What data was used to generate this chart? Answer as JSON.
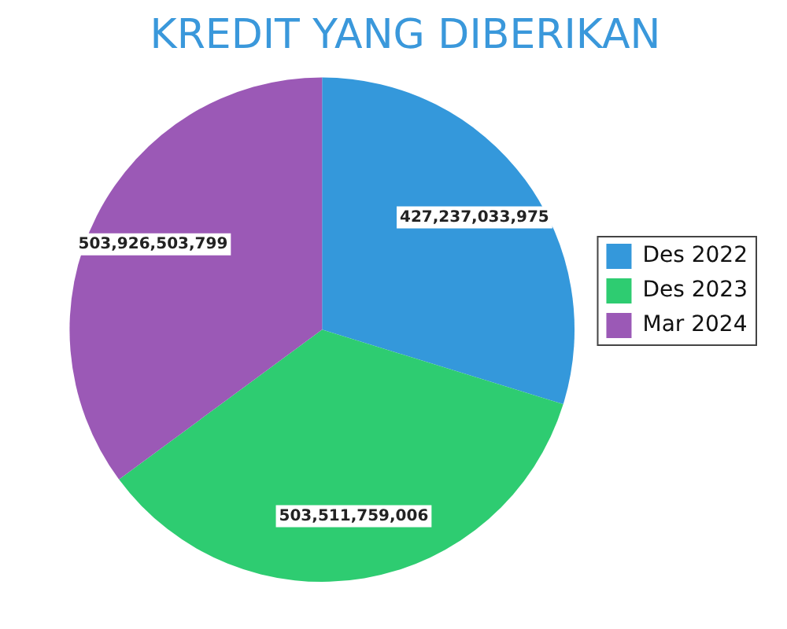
{
  "chart_data": {
    "type": "pie",
    "title": "KREDIT YANG DIBERIKAN",
    "categories": [
      "Des 2022",
      "Des 2023",
      "Mar 2024"
    ],
    "values": [
      427237033975,
      503511759006,
      503926503799
    ],
    "colors": [
      "#3498db",
      "#2ecc71",
      "#9b59b6"
    ],
    "value_labels": [
      "427,237,033,975",
      "503,511,759,006",
      "503,926,503,799"
    ],
    "legend": "right"
  }
}
